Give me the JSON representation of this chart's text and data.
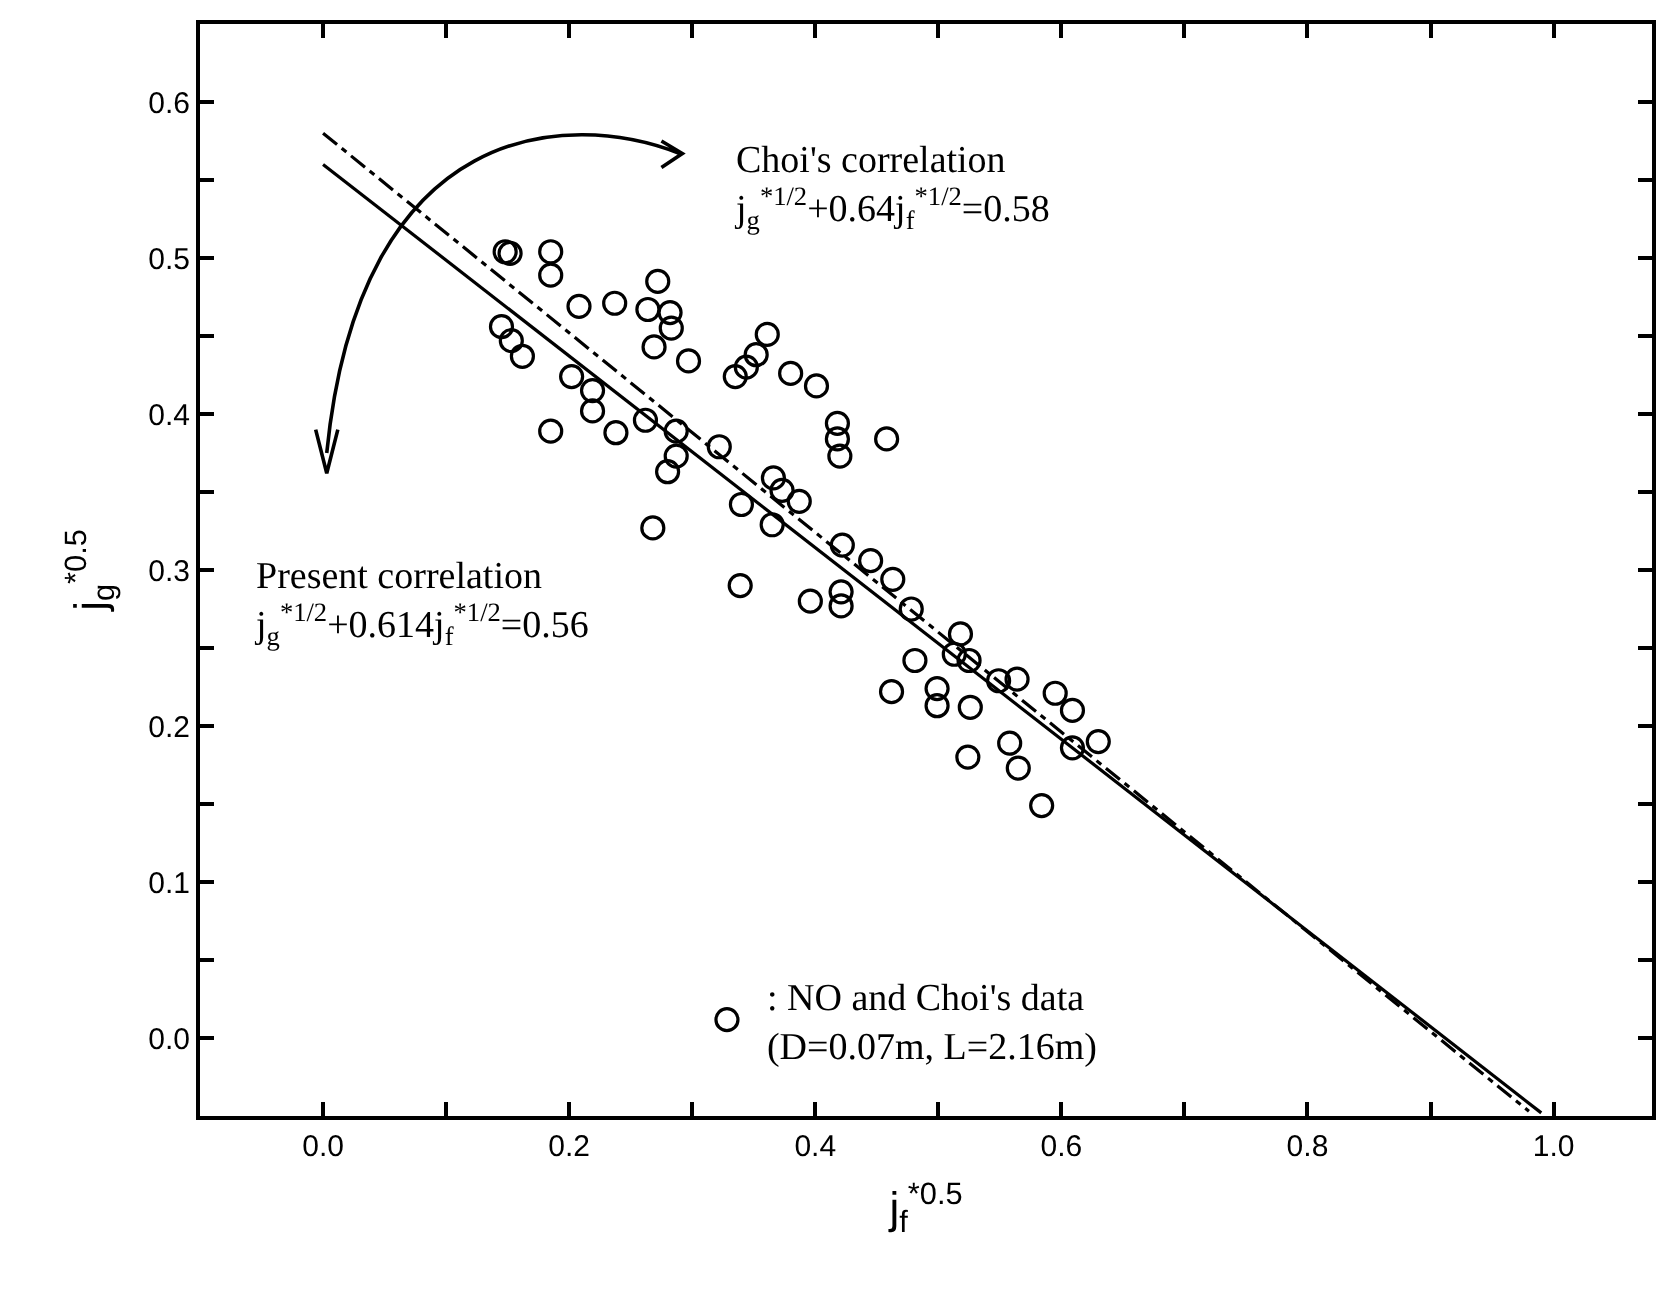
{
  "chart_data": {
    "type": "scatter",
    "xlabel": "j$_{f}$$^{*0.5}$",
    "ylabel": "j$_{g}$$^{*0.5}$",
    "xlim": [
      -0.1,
      1.08
    ],
    "ylim": [
      -0.05,
      0.65
    ],
    "xticks": [
      {
        "value": 0,
        "label": "0.0"
      },
      {
        "value": 0.1,
        "label": null
      },
      {
        "value": 0.2,
        "label": "0.2"
      },
      {
        "value": 0.3,
        "label": null
      },
      {
        "value": 0.4,
        "label": "0.4"
      },
      {
        "value": 0.5,
        "label": null
      },
      {
        "value": 0.6,
        "label": "0.6"
      },
      {
        "value": 0.7,
        "label": null
      },
      {
        "value": 0.8,
        "label": "0.8"
      },
      {
        "value": 0.9,
        "label": null
      },
      {
        "value": 1.0,
        "label": "1.0"
      }
    ],
    "yticks": [
      {
        "value": 0,
        "label": "0.0"
      },
      {
        "value": 0.05,
        "label": null
      },
      {
        "value": 0.1,
        "label": "0.1"
      },
      {
        "value": 0.15,
        "label": null
      },
      {
        "value": 0.2,
        "label": "0.2"
      },
      {
        "value": 0.25,
        "label": null
      },
      {
        "value": 0.3,
        "label": "0.3"
      },
      {
        "value": 0.35,
        "label": null
      },
      {
        "value": 0.4,
        "label": "0.4"
      },
      {
        "value": 0.45,
        "label": null
      },
      {
        "value": 0.5,
        "label": "0.5"
      },
      {
        "value": 0.55,
        "label": null
      },
      {
        "value": 0.6,
        "label": "0.6"
      }
    ],
    "legend": "bottom",
    "marker": "circle",
    "series": [
      {
        "name": ": NO and Choi's data\n(D=0.07m, L=2.16m)",
        "color": "#000000",
        "x": [
          0.148,
          0.152,
          0.185,
          0.185,
          0.145,
          0.153,
          0.162,
          0.208,
          0.237,
          0.272,
          0.264,
          0.282,
          0.283,
          0.269,
          0.297,
          0.361,
          0.352,
          0.344,
          0.335,
          0.38,
          0.401,
          0.418,
          0.418,
          0.42,
          0.458,
          0.202,
          0.219,
          0.219,
          0.238,
          0.185,
          0.262,
          0.287,
          0.287,
          0.28,
          0.268,
          0.322,
          0.34,
          0.366,
          0.373,
          0.387,
          0.365,
          0.339,
          0.396,
          0.421,
          0.421,
          0.422,
          0.445,
          0.463,
          0.478,
          0.518,
          0.481,
          0.462,
          0.499,
          0.499,
          0.526,
          0.513,
          0.525,
          0.549,
          0.564,
          0.595,
          0.609,
          0.63,
          0.609,
          0.558,
          0.565,
          0.524,
          0.584
        ],
        "values": [
          0.504,
          0.503,
          0.504,
          0.489,
          0.456,
          0.447,
          0.437,
          0.469,
          0.471,
          0.485,
          0.467,
          0.465,
          0.455,
          0.443,
          0.434,
          0.451,
          0.438,
          0.43,
          0.424,
          0.426,
          0.418,
          0.394,
          0.384,
          0.373,
          0.384,
          0.424,
          0.415,
          0.402,
          0.388,
          0.389,
          0.396,
          0.389,
          0.373,
          0.363,
          0.327,
          0.379,
          0.342,
          0.359,
          0.351,
          0.344,
          0.329,
          0.29,
          0.28,
          0.286,
          0.277,
          0.316,
          0.306,
          0.294,
          0.275,
          0.259,
          0.242,
          0.222,
          0.224,
          0.213,
          0.212,
          0.246,
          0.242,
          0.229,
          0.23,
          0.221,
          0.21,
          0.19,
          0.186,
          0.189,
          0.173,
          0.18,
          0.149
        ]
      },
      {
        "type": "line",
        "color": "#000000",
        "line_style": "solid",
        "marker": "none",
        "x": [
          0,
          0.99
        ],
        "values": [
          0.56,
          -0.048
        ]
      },
      {
        "type": "line",
        "color": "#000000",
        "line_style": "dashed",
        "marker": "none",
        "x": [
          0,
          0.98
        ],
        "values": [
          0.58,
          -0.047
        ]
      }
    ],
    "annotations": [
      "Choi's correlation\nj$_{g}$$^{*1/2}$+0.64j$_{f}$$^{*1/2}$=0.58",
      "Present correlation\nj$_{g}$$^{*1/2}$+0.614j$_{f}$$^{*1/2}$=0.56"
    ]
  }
}
